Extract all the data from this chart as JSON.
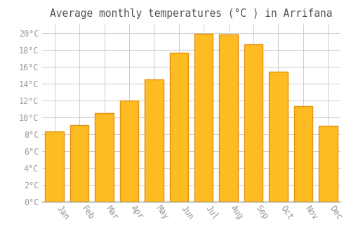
{
  "title": "Average monthly temperatures (°C ) in Arrifana",
  "months": [
    "Jan",
    "Feb",
    "Mar",
    "Apr",
    "May",
    "Jun",
    "Jul",
    "Aug",
    "Sep",
    "Oct",
    "Nov",
    "Dec"
  ],
  "values": [
    8.3,
    9.1,
    10.5,
    12.0,
    14.5,
    17.7,
    19.9,
    19.8,
    18.7,
    15.4,
    11.3,
    9.0
  ],
  "bar_color": "#FFBB22",
  "bar_edge_color": "#E89010",
  "background_color": "#FFFFFF",
  "plot_bg_color": "#FFFFFF",
  "grid_color": "#CCCCCC",
  "text_color": "#999999",
  "title_color": "#555555",
  "ylim": [
    0,
    21
  ],
  "ytick_step": 2,
  "title_fontsize": 10.5,
  "tick_fontsize": 8.5
}
